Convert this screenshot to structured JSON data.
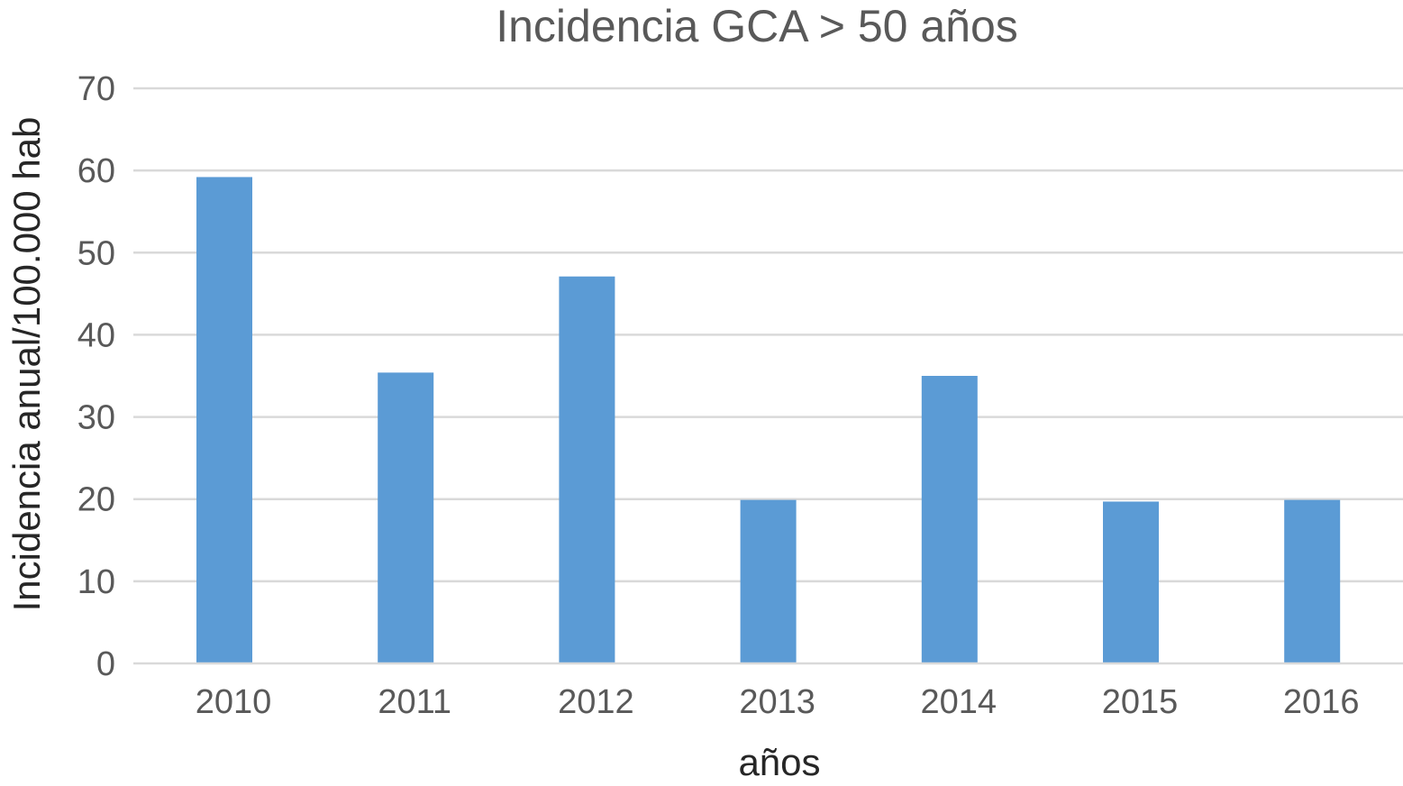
{
  "chart_data": {
    "type": "bar",
    "title": "Incidencia GCA > 50 años",
    "xlabel": "años",
    "ylabel": "Incidencia anual/100.000 hab",
    "categories": [
      "2010",
      "2011",
      "2012",
      "2013",
      "2014",
      "2015",
      "2016"
    ],
    "values": [
      59.2,
      35.4,
      47.1,
      19.9,
      35.0,
      19.7,
      19.9
    ],
    "ylim": [
      0,
      70
    ],
    "yticks": [
      0,
      10,
      20,
      30,
      40,
      50,
      60,
      70
    ],
    "grid": true,
    "legend": "none",
    "colors": {
      "bar": "#5b9bd5",
      "grid": "#d9d9d9",
      "text": "#595959"
    }
  }
}
